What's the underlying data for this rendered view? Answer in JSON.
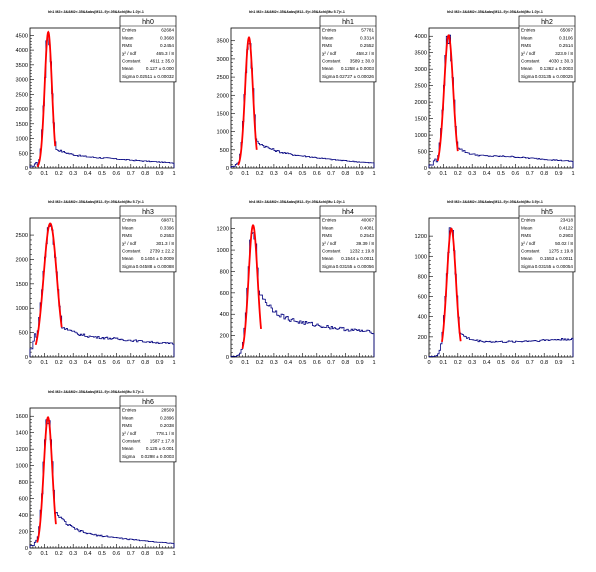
{
  "colors": {
    "histogram": "#00007f",
    "fit": "#ff0000",
    "axis": "#000000",
    "background": "#ffffff"
  },
  "chart_data": [
    {
      "type": "histogram",
      "name": "hh0",
      "title": "hh1 M2>.3&&M2<.35&&abs(M12-.9)<.05&&chi(Mu 1.0)<.1",
      "xlim": [
        0,
        1
      ],
      "ylim": [
        0,
        4750
      ],
      "y_ticks": [
        0,
        500,
        1000,
        1500,
        2000,
        2500,
        3000,
        3500,
        4000,
        4500
      ],
      "x_ticks": [
        "0",
        "0.1",
        "0.2",
        "0.3",
        "0.4",
        "0.5",
        "0.6",
        "0.7",
        "0.8",
        "0.9",
        "1"
      ],
      "stats": [
        [
          "Entries",
          "62684"
        ],
        [
          "Mean",
          "0.3668"
        ],
        [
          "RMS",
          "0.2454"
        ],
        [
          "χ² / ndf",
          "465.3 / 8"
        ],
        [
          "Constant",
          "4611 ± 35.0"
        ],
        [
          "Mean",
          "0.127 ± 0.000"
        ],
        [
          "Sigma",
          "0.02511 ± 0.00032"
        ]
      ],
      "fit": {
        "constant": 4611,
        "mean": 0.127,
        "sigma": 0.0251,
        "range": [
          0.05,
          0.175
        ]
      },
      "shape": {
        "peak_x": 0.127,
        "peak_y": 4550,
        "floor": 200,
        "rise": [
          0.05,
          0.11
        ],
        "tail_level": 800,
        "tail_decay": 0.15,
        "tail_end": 170,
        "tail_mid": 300
      }
    },
    {
      "type": "histogram",
      "name": "hh1",
      "title": "hh1 M2>.3&&M2<.35&&abs(M12-.9)<.05&&chi(Mu 5.7)<.1",
      "xlim": [
        0,
        1
      ],
      "ylim": [
        0,
        3850
      ],
      "y_ticks": [
        0,
        500,
        1000,
        1500,
        2000,
        2500,
        3000,
        3500
      ],
      "x_ticks": [
        "0",
        "0.1",
        "0.2",
        "0.3",
        "0.4",
        "0.5",
        "0.6",
        "0.7",
        "0.8",
        "0.9",
        "1"
      ],
      "stats": [
        [
          "Entries",
          "57781"
        ],
        [
          "Mean",
          "0.3314"
        ],
        [
          "RMS",
          "0.2552"
        ],
        [
          "χ² / ndf",
          "458.2 / 8"
        ],
        [
          "Constant",
          "3589 ± 30.0"
        ],
        [
          "Mean",
          "0.1258 ± 0.0003"
        ],
        [
          "Sigma",
          "0.02727 ± 0.00026"
        ]
      ],
      "fit": {
        "constant": 3589,
        "mean": 0.1258,
        "sigma": 0.0273,
        "range": [
          0.05,
          0.18
        ]
      },
      "shape": {
        "peak_x": 0.126,
        "peak_y": 3550,
        "floor": 150,
        "rise": [
          0.05,
          0.11
        ],
        "tail_level": 900,
        "tail_decay": 0.18,
        "tail_end": 130,
        "tail_mid": 250
      }
    },
    {
      "type": "histogram",
      "name": "hh2",
      "title": "hh2 M2>.3&&M2<.35&&abs(M12-.9)<.05&&chi(Mu 1.0)<.1",
      "xlim": [
        0,
        1
      ],
      "ylim": [
        0,
        4250
      ],
      "y_ticks": [
        0,
        500,
        1000,
        1500,
        2000,
        2500,
        3000,
        3500,
        4000
      ],
      "x_ticks": [
        "0",
        "0.1",
        "0.2",
        "0.3",
        "0.4",
        "0.5",
        "0.6",
        "0.7",
        "0.8",
        "0.9",
        "1"
      ],
      "stats": [
        [
          "Entries",
          "65097"
        ],
        [
          "Mean",
          "0.3106"
        ],
        [
          "RMS",
          "0.2514"
        ],
        [
          "χ² / ndf",
          "323.9 / 8"
        ],
        [
          "Constant",
          "4030 ± 30.3"
        ],
        [
          "Mean",
          "0.1362 ± 0.0003"
        ],
        [
          "Sigma",
          "0.03135 ± 0.00025"
        ]
      ],
      "fit": {
        "constant": 4030,
        "mean": 0.1362,
        "sigma": 0.0314,
        "range": [
          0.06,
          0.2
        ]
      },
      "shape": {
        "peak_x": 0.136,
        "peak_y": 4000,
        "floor": 300,
        "rise": [
          0.05,
          0.12
        ],
        "tail_level": 1100,
        "tail_decay": 0.07,
        "tail_end": 200,
        "tail_mid": 350
      }
    },
    {
      "type": "histogram",
      "name": "hh3",
      "title": "hh3 M2>.3&&M2<.35&&abs(M12-.9)<.05&&chi(Mu 5.7)<.1",
      "xlim": [
        0,
        1
      ],
      "ylim": [
        0,
        2850
      ],
      "y_ticks": [
        0,
        500,
        1000,
        1500,
        2000,
        2500
      ],
      "x_ticks": [
        "0",
        "0.1",
        "0.2",
        "0.3",
        "0.4",
        "0.5",
        "0.6",
        "0.7",
        "0.8",
        "0.9",
        "1"
      ],
      "stats": [
        [
          "Entries",
          "69871"
        ],
        [
          "Mean",
          "0.3396"
        ],
        [
          "RMS",
          "0.2553"
        ],
        [
          "χ² / ndf",
          "301.3 / 8"
        ],
        [
          "Constant",
          "2739 ± 22.2"
        ],
        [
          "Mean",
          "0.1404 ± 0.0009"
        ],
        [
          "Sigma",
          "0.04588 ± 0.00088"
        ]
      ],
      "fit": {
        "constant": 2739,
        "mean": 0.1404,
        "sigma": 0.0459,
        "range": [
          0.04,
          0.22
        ]
      },
      "shape": {
        "peak_x": 0.14,
        "peak_y": 2700,
        "floor": 550,
        "rise": [
          0.04,
          0.1
        ],
        "tail_level": 900,
        "tail_decay": 0.12,
        "tail_end": 270,
        "tail_mid": 370
      }
    },
    {
      "type": "histogram",
      "name": "hh4",
      "title": "hh4 M2>.3&&M2<.35&&abs(M12-.9)<.05&&chi(Mu 1.0)<.1",
      "xlim": [
        0,
        1
      ],
      "ylim": [
        0,
        1300
      ],
      "y_ticks": [
        0,
        200,
        400,
        600,
        800,
        1000,
        1200
      ],
      "x_ticks": [
        "0",
        "0.1",
        "0.2",
        "0.3",
        "0.4",
        "0.5",
        "0.6",
        "0.7",
        "0.8",
        "0.9",
        "1"
      ],
      "stats": [
        [
          "Entries",
          "40067"
        ],
        [
          "Mean",
          "0.4081"
        ],
        [
          "RMS",
          "0.2543"
        ],
        [
          "χ² / ndf",
          "39.39 / 8"
        ],
        [
          "Constant",
          "1232 ± 19.8"
        ],
        [
          "Mean",
          "0.1544 ± 0.0011"
        ],
        [
          "Sigma",
          "0.03155 ± 0.00056"
        ]
      ],
      "fit": {
        "constant": 1232,
        "mean": 0.1544,
        "sigma": 0.0316,
        "range": [
          0.08,
          0.21
        ]
      },
      "shape": {
        "peak_x": 0.154,
        "peak_y": 1230,
        "floor": 20,
        "rise": [
          0.06,
          0.13
        ],
        "tail_level": 750,
        "tail_decay": 0.13,
        "tail_end": 230,
        "tail_mid": 290
      }
    },
    {
      "type": "histogram",
      "name": "hh5",
      "title": "hh5 M2>.3&&M2<.35&&abs(M12-.9)<.05&&chi(Mu 3.9)<.1",
      "xlim": [
        0,
        1
      ],
      "ylim": [
        0,
        1380
      ],
      "y_ticks": [
        0,
        200,
        400,
        600,
        800,
        1000,
        1200
      ],
      "x_ticks": [
        "0",
        "0.1",
        "0.2",
        "0.3",
        "0.4",
        "0.5",
        "0.6",
        "0.7",
        "0.8",
        "0.9",
        "1"
      ],
      "stats": [
        [
          "Entries",
          "23418"
        ],
        [
          "Mean",
          "0.4122"
        ],
        [
          "RMS",
          "0.2903"
        ],
        [
          "χ² / ndf",
          "50.02 / 8"
        ],
        [
          "Constant",
          "1275 ± 19.8"
        ],
        [
          "Mean",
          "0.1553 ± 0.0011"
        ],
        [
          "Sigma",
          "0.03155 ± 0.00054"
        ]
      ],
      "fit": {
        "constant": 1275,
        "mean": 0.1553,
        "sigma": 0.0316,
        "range": [
          0.09,
          0.22
        ]
      },
      "shape": {
        "peak_x": 0.155,
        "peak_y": 1270,
        "floor": 15,
        "rise": [
          0.07,
          0.13
        ],
        "tail_level": 400,
        "tail_decay": 0.06,
        "tail_end": 180,
        "tail_mid": 150
      }
    },
    {
      "type": "histogram",
      "name": "hh6",
      "title": "hh6 M2>.3&&M2<.35&&abs(M12-.9)<.05&&chi(Mu 5.7)<.1",
      "xlim": [
        0,
        1
      ],
      "ylim": [
        0,
        1700
      ],
      "y_ticks": [
        0,
        200,
        400,
        600,
        800,
        1000,
        1200,
        1400,
        1600
      ],
      "x_ticks": [
        "0",
        "0.1",
        "0.2",
        "0.3",
        "0.4",
        "0.5",
        "0.6",
        "0.7",
        "0.8",
        "0.9",
        "1"
      ],
      "stats": [
        [
          "Entries",
          "28509"
        ],
        [
          "Mean",
          "0.2896"
        ],
        [
          "RMS",
          "0.2038"
        ],
        [
          "χ² / ndf",
          "778.1 / 8"
        ],
        [
          "Constant",
          "1587 ± 17.8"
        ],
        [
          "Mean",
          "0.125 ± 0.001"
        ],
        [
          "Sigma",
          "0.0298 ± 0.0003"
        ]
      ],
      "fit": {
        "constant": 1587,
        "mean": 0.125,
        "sigma": 0.0298,
        "range": [
          0.05,
          0.18
        ]
      },
      "shape": {
        "peak_x": 0.125,
        "peak_y": 1580,
        "floor": 100,
        "rise": [
          0.05,
          0.11
        ],
        "tail_level": 600,
        "tail_decay": 0.13,
        "tail_end": 55,
        "tail_mid": 120
      }
    }
  ]
}
